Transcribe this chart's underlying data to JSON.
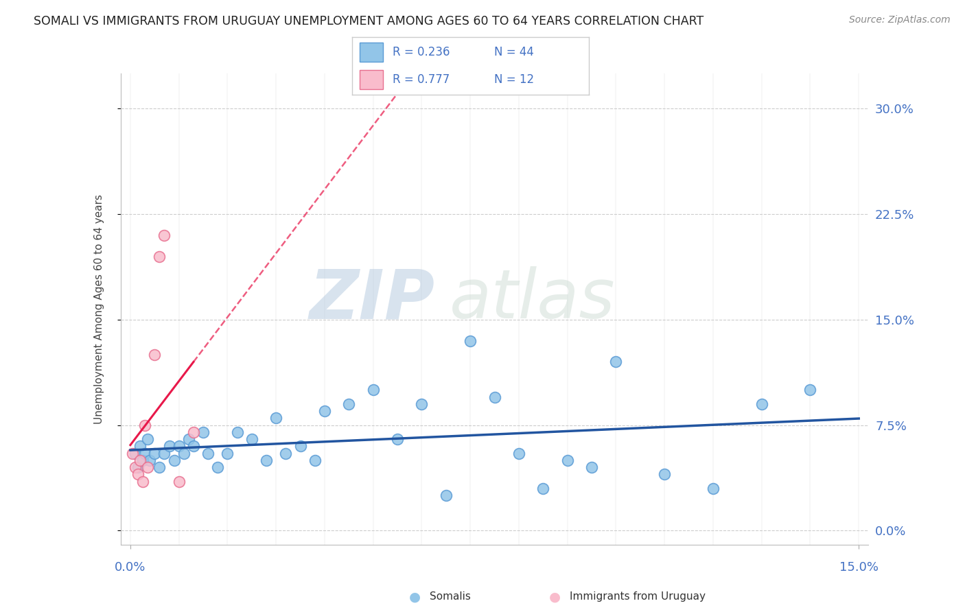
{
  "title": "SOMALI VS IMMIGRANTS FROM URUGUAY UNEMPLOYMENT AMONG AGES 60 TO 64 YEARS CORRELATION CHART",
  "source_text": "Source: ZipAtlas.com",
  "ylabel": "Unemployment Among Ages 60 to 64 years",
  "xlim": [
    0.0,
    15.0
  ],
  "ylim": [
    0.0,
    32.0
  ],
  "yticks": [
    0.0,
    7.5,
    15.0,
    22.5,
    30.0
  ],
  "ytick_labels": [
    "0.0%",
    "7.5%",
    "15.0%",
    "22.5%",
    "30.0%"
  ],
  "somali_color": "#92C5E8",
  "somali_color_edge": "#5A9BD5",
  "uruguay_color": "#F9BCCC",
  "uruguay_color_edge": "#E87090",
  "trend_somali_color": "#2255A0",
  "trend_uruguay_color": "#E8184A",
  "R_somali": 0.236,
  "N_somali": 44,
  "R_uruguay": 0.777,
  "N_uruguay": 12,
  "somali_x": [
    0.1,
    0.15,
    0.2,
    0.25,
    0.3,
    0.35,
    0.4,
    0.5,
    0.6,
    0.7,
    0.8,
    0.9,
    1.0,
    1.1,
    1.2,
    1.3,
    1.5,
    1.6,
    1.8,
    2.0,
    2.2,
    2.5,
    2.8,
    3.0,
    3.2,
    3.5,
    3.8,
    4.0,
    4.5,
    5.0,
    5.5,
    6.0,
    6.5,
    7.0,
    7.5,
    8.0,
    8.5,
    9.0,
    9.5,
    10.0,
    11.0,
    12.0,
    13.0,
    14.0
  ],
  "somali_y": [
    5.5,
    4.5,
    6.0,
    5.0,
    5.5,
    6.5,
    5.0,
    5.5,
    4.5,
    5.5,
    6.0,
    5.0,
    6.0,
    5.5,
    6.5,
    6.0,
    7.0,
    5.5,
    4.5,
    5.5,
    7.0,
    6.5,
    5.0,
    8.0,
    5.5,
    6.0,
    5.0,
    8.5,
    9.0,
    10.0,
    6.5,
    9.0,
    2.5,
    13.5,
    9.5,
    5.5,
    3.0,
    5.0,
    4.5,
    12.0,
    4.0,
    3.0,
    9.0,
    10.0
  ],
  "uruguay_x": [
    0.05,
    0.1,
    0.15,
    0.2,
    0.25,
    0.3,
    0.35,
    0.5,
    0.6,
    0.7,
    1.0,
    1.3
  ],
  "uruguay_y": [
    5.5,
    4.5,
    4.0,
    5.0,
    3.5,
    7.5,
    4.5,
    12.5,
    19.5,
    21.0,
    3.5,
    7.0
  ],
  "watermark_zip": "ZIP",
  "watermark_atlas": "atlas",
  "background_color": "#FFFFFF",
  "grid_color": "#CCCCCC",
  "title_color": "#222222",
  "axis_label_color": "#4472C4",
  "legend_text_color": "#4472C4"
}
